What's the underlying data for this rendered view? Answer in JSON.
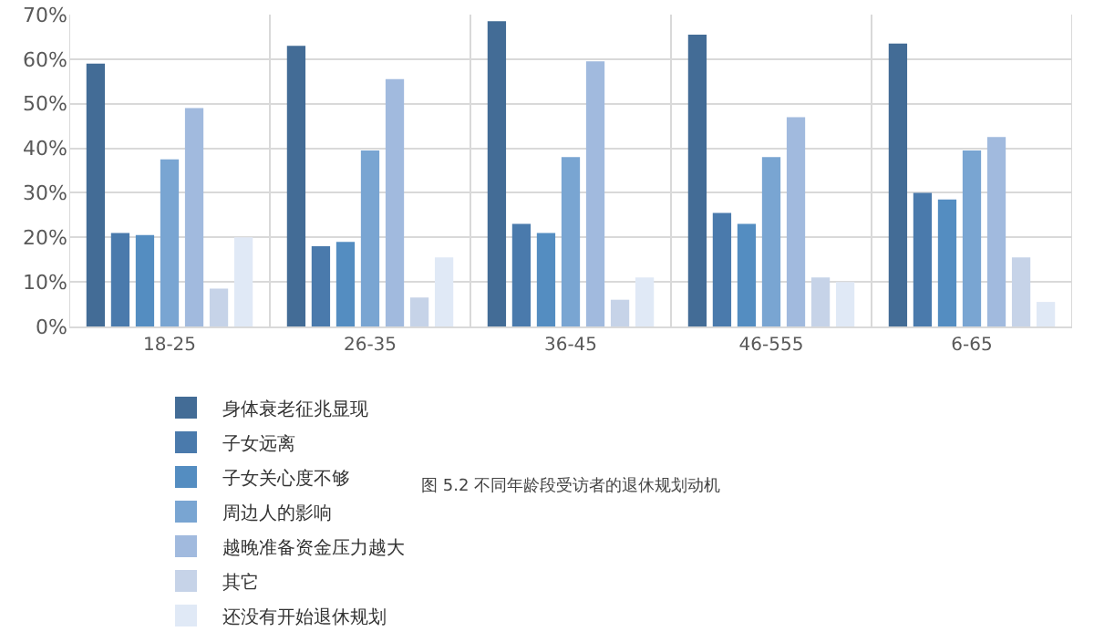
{
  "chart_data": {
    "type": "bar",
    "categories": [
      "18-25",
      "26-35",
      "36-45",
      "46-555",
      "6-65"
    ],
    "series": [
      {
        "name": "身体衰老征兆显现",
        "color": "#436c96",
        "values": [
          59,
          63,
          68.5,
          65.5,
          63.5
        ]
      },
      {
        "name": "子女远离",
        "color": "#4a7aac",
        "values": [
          21,
          18,
          23,
          25.5,
          30
        ]
      },
      {
        "name": "子女关心度不够",
        "color": "#548dc1",
        "values": [
          20.5,
          19,
          21,
          23,
          28.5
        ]
      },
      {
        "name": "周边人的影响",
        "color": "#79a5d2",
        "values": [
          37.5,
          39.5,
          38,
          38,
          39.5
        ]
      },
      {
        "name": "越晚准备资金压力越大",
        "color": "#a1bade",
        "values": [
          49,
          55.5,
          59.5,
          47,
          42.5
        ]
      },
      {
        "name": "其它",
        "color": "#c6d3e8",
        "values": [
          8.5,
          6.5,
          6,
          11,
          15.5
        ]
      },
      {
        "name": "还没有开始退休规划",
        "color": "#e0e9f6",
        "values": [
          20,
          15.5,
          11,
          10,
          5.5
        ]
      }
    ],
    "ylim": [
      0,
      70
    ],
    "yticks": [
      {
        "value": 0,
        "label": "0%"
      },
      {
        "value": 10,
        "label": "10%"
      },
      {
        "value": 20,
        "label": "20%"
      },
      {
        "value": 30,
        "label": "30%"
      },
      {
        "value": 40,
        "label": "40%"
      },
      {
        "value": 50,
        "label": "50%"
      },
      {
        "value": 60,
        "label": "60%"
      },
      {
        "value": 70,
        "label": "70%"
      }
    ],
    "grid": true,
    "legend": "bottom",
    "annotations": [
      "图 5.2 不同年龄段受访者的退休规划动机"
    ]
  }
}
